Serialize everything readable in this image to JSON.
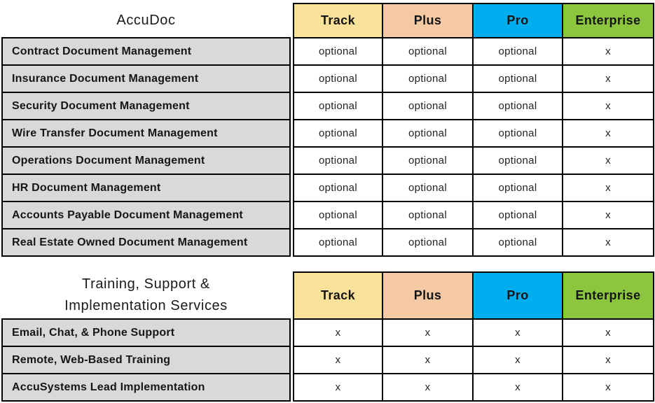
{
  "palette": {
    "track_bg": "#FBE29B",
    "plus_bg": "#F5C9A4",
    "pro_bg": "#00AEEF",
    "enterprise_bg": "#8CC63F",
    "feature_row_bg": "#D9D9D9",
    "border": "#000000",
    "page_bg": "#FFFFFF"
  },
  "chart_data": [
    {
      "type": "table",
      "title": "AccuDoc",
      "title_display": "AccuDoc",
      "columns": [
        "Track",
        "Plus",
        "Pro",
        "Enterprise"
      ],
      "rows": [
        {
          "feature": "Contract Document Management",
          "values": [
            "optional",
            "optional",
            "optional",
            "x"
          ]
        },
        {
          "feature": "Insurance Document Management",
          "values": [
            "optional",
            "optional",
            "optional",
            "x"
          ]
        },
        {
          "feature": "Security Document Management",
          "values": [
            "optional",
            "optional",
            "optional",
            "x"
          ]
        },
        {
          "feature": "Wire Transfer Document Management",
          "values": [
            "optional",
            "optional",
            "optional",
            "x"
          ]
        },
        {
          "feature": "Operations Document Management",
          "values": [
            "optional",
            "optional",
            "optional",
            "x"
          ]
        },
        {
          "feature": "HR Document Management",
          "values": [
            "optional",
            "optional",
            "optional",
            "x"
          ]
        },
        {
          "feature": "Accounts Payable Document Management",
          "values": [
            "optional",
            "optional",
            "optional",
            "x"
          ]
        },
        {
          "feature": "Real Estate Owned Document Management",
          "values": [
            "optional",
            "optional",
            "optional",
            "x"
          ]
        }
      ]
    },
    {
      "type": "table",
      "title": "Training, Support & Implementation Services",
      "title_display": "Training, Support &\nImplementation Services",
      "columns": [
        "Track",
        "Plus",
        "Pro",
        "Enterprise"
      ],
      "rows": [
        {
          "feature": "Email, Chat, & Phone Support",
          "values": [
            "x",
            "x",
            "x",
            "x"
          ]
        },
        {
          "feature": "Remote, Web-Based Training",
          "values": [
            "x",
            "x",
            "x",
            "x"
          ]
        },
        {
          "feature": "AccuSystems Lead Implementation",
          "values": [
            "x",
            "x",
            "x",
            "x"
          ]
        }
      ]
    }
  ]
}
